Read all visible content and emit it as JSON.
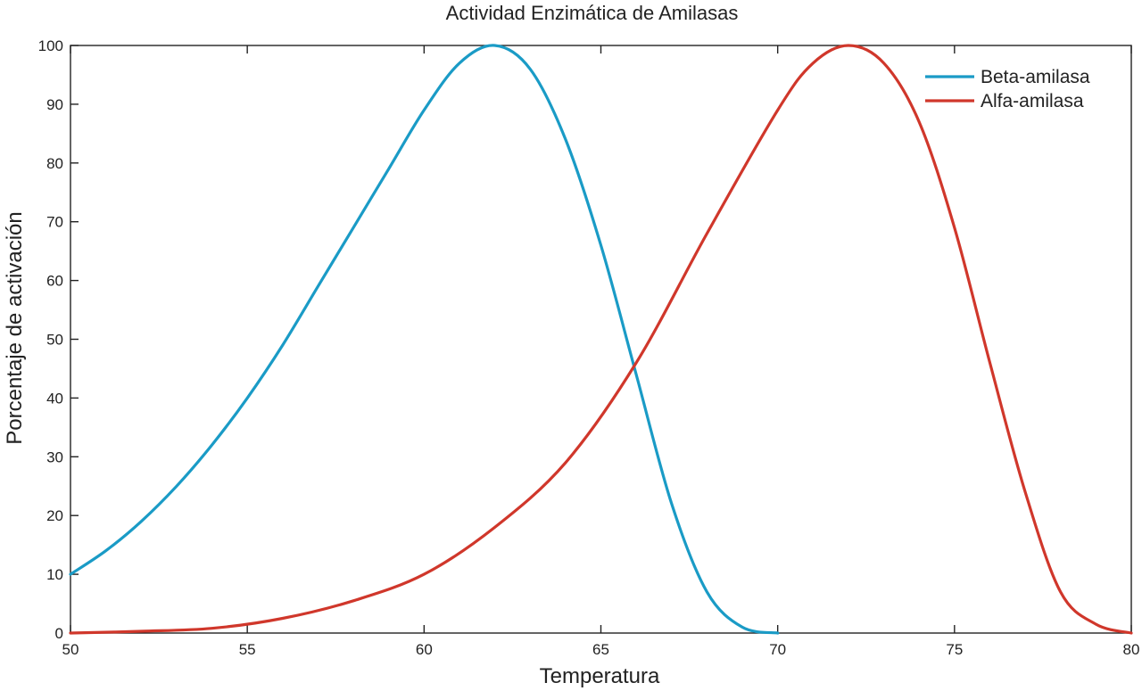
{
  "chart_data": {
    "type": "line",
    "title": "Actividad Enzimática de Amilasas",
    "xlabel": "Temperatura",
    "ylabel": "Porcentaje de activación",
    "xlim": [
      50,
      80
    ],
    "ylim": [
      0,
      100
    ],
    "xticks": [
      50,
      55,
      60,
      65,
      70,
      75,
      80
    ],
    "yticks": [
      0,
      10,
      20,
      30,
      40,
      50,
      60,
      70,
      80,
      90,
      100
    ],
    "grid": false,
    "legend_position": "top-right",
    "series": [
      {
        "name": "Beta-amilasa",
        "color": "#1a9bc6",
        "x": [
          50,
          51,
          52,
          53,
          54,
          55,
          56,
          57,
          58,
          59,
          60,
          61,
          62,
          63,
          64,
          65,
          66,
          67,
          68,
          69,
          70
        ],
        "y": [
          10,
          14,
          19,
          25,
          32,
          40,
          49,
          59,
          69,
          79,
          89,
          97,
          100,
          96,
          84,
          66,
          44,
          22,
          7,
          1,
          0
        ]
      },
      {
        "name": "Alfa-amilasa",
        "color": "#d0372b",
        "x": [
          50,
          52,
          54,
          56,
          58,
          60,
          62,
          64,
          66,
          68,
          70,
          71,
          72,
          73,
          74,
          75,
          76,
          77,
          78,
          79,
          80
        ],
        "y": [
          0,
          0.3,
          0.8,
          2.5,
          5.5,
          10,
          18,
          29,
          46,
          68,
          89,
          97,
          100,
          97,
          87,
          69,
          46,
          24,
          7,
          1.5,
          0
        ]
      }
    ]
  }
}
